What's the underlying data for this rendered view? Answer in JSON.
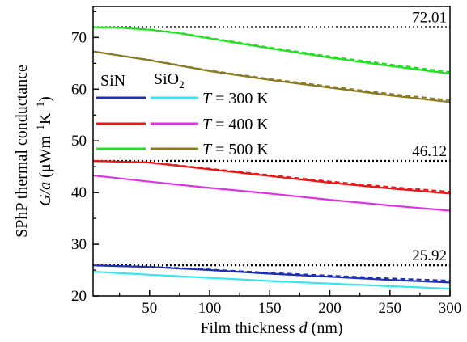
{
  "chart_data": {
    "type": "line",
    "xlabel": "Film thickness d (nm)",
    "xlabel_parts": {
      "pre": "Film thickness ",
      "italic": "d",
      "post": " (nm)"
    },
    "ylabel_line1": "SPhP thermal conductance",
    "ylabel_line2": {
      "italic": "G/a",
      "unit": " (μWm",
      "exp1": "−1",
      "mid": "K",
      "exp2": "−1",
      "end": ")"
    },
    "xlim": [
      3,
      300
    ],
    "ylim": [
      20,
      76
    ],
    "xticks": [
      50,
      100,
      150,
      200,
      250,
      300
    ],
    "yticks": [
      20,
      30,
      40,
      50,
      60,
      70
    ],
    "grid": false,
    "legend": {
      "placement": "center-left",
      "col_headers": [
        "SiN",
        "SiO",
        "2"
      ],
      "rows": [
        {
          "italic": "T",
          "text": " = 300 K"
        },
        {
          "italic": "T",
          "text": " = 400 K"
        },
        {
          "italic": "T",
          "text": " = 500 K"
        }
      ]
    },
    "reference_lines": [
      {
        "y": 72.01,
        "label": "72.01",
        "style": "dotted",
        "color": "#000000"
      },
      {
        "y": 46.12,
        "label": "46.12",
        "style": "dotted",
        "color": "#000000"
      },
      {
        "y": 25.92,
        "label": "25.92",
        "style": "dotted",
        "color": "#000000"
      }
    ],
    "series": [
      {
        "material": "SiN",
        "temperature": "300 K",
        "color": "#1f2fb5",
        "dashed_variant": true,
        "x": [
          3,
          50,
          100,
          150,
          200,
          250,
          300
        ],
        "y": [
          25.9,
          25.6,
          25.0,
          24.3,
          23.7,
          23.1,
          22.6
        ]
      },
      {
        "material": "SiO2",
        "temperature": "300 K",
        "color": "#33e6f0",
        "dashed_variant": false,
        "x": [
          3,
          50,
          100,
          150,
          200,
          250,
          300
        ],
        "y": [
          24.7,
          24.1,
          23.5,
          22.9,
          22.4,
          21.9,
          21.4
        ]
      },
      {
        "material": "SiN",
        "temperature": "400 K",
        "color": "#e81818",
        "dashed_variant": true,
        "x": [
          3,
          50,
          100,
          150,
          200,
          250,
          300
        ],
        "y": [
          46.1,
          45.8,
          44.5,
          43.2,
          41.9,
          40.8,
          39.8
        ]
      },
      {
        "material": "SiO2",
        "temperature": "400 K",
        "color": "#e030e6",
        "dashed_variant": false,
        "x": [
          3,
          50,
          100,
          150,
          200,
          250,
          300
        ],
        "y": [
          43.3,
          42.1,
          40.9,
          39.8,
          38.6,
          37.5,
          36.5
        ]
      },
      {
        "material": "SiN",
        "temperature": "500 K",
        "color": "#22e022",
        "dashed_variant": true,
        "x": [
          3,
          25,
          50,
          75,
          100,
          150,
          200,
          250,
          300
        ],
        "y": [
          72.0,
          71.9,
          71.5,
          70.8,
          69.8,
          67.9,
          66.1,
          64.5,
          63.0
        ]
      },
      {
        "material": "SiO2",
        "temperature": "500 K",
        "color": "#8b7a25",
        "dashed_variant": true,
        "x": [
          3,
          50,
          100,
          150,
          200,
          250,
          300
        ],
        "y": [
          67.3,
          65.6,
          63.5,
          61.8,
          60.3,
          58.8,
          57.5
        ]
      }
    ]
  }
}
